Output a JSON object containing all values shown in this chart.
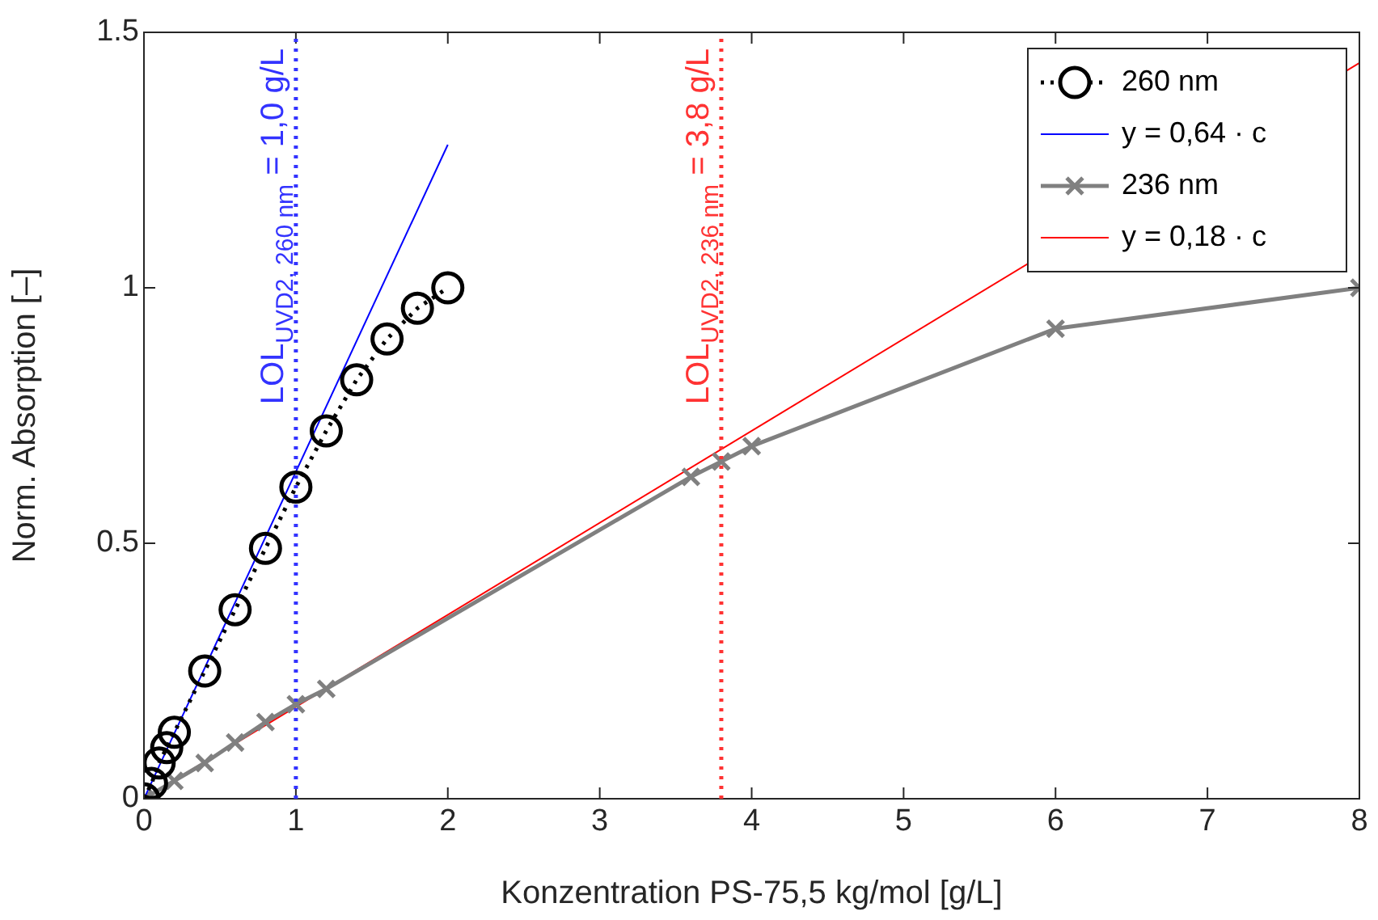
{
  "chart_data": {
    "type": "line",
    "xlabel": "Konzentration PS-75,5 kg/mol [g/L]",
    "ylabel": "Norm. Absorption [–]",
    "xlim": [
      0,
      8
    ],
    "ylim": [
      0,
      1.5
    ],
    "xticks": [
      0,
      1,
      2,
      3,
      4,
      5,
      6,
      7,
      8
    ],
    "yticks": [
      0,
      0.5,
      1,
      1.5
    ],
    "grid": false,
    "legend": "top right",
    "series": [
      {
        "name": "260 nm",
        "color": "#000000",
        "marker": "circle",
        "line_style": "dotted",
        "x": [
          0,
          0.05,
          0.1,
          0.15,
          0.2,
          0.4,
          0.6,
          0.8,
          1.0,
          1.2,
          1.4,
          1.6,
          1.8,
          2.0
        ],
        "values": [
          0,
          0.03,
          0.07,
          0.1,
          0.13,
          0.25,
          0.37,
          0.49,
          0.61,
          0.72,
          0.82,
          0.9,
          0.96,
          1.0
        ]
      },
      {
        "name": "y = 0,64 · c",
        "color": "#0000ff",
        "marker": "none",
        "line_style": "solid",
        "x": [
          0,
          2
        ],
        "values": [
          0,
          1.28
        ]
      },
      {
        "name": "236 nm",
        "color": "#808080",
        "marker": "cross",
        "line_style": "solid",
        "x": [
          0,
          0.2,
          0.4,
          0.6,
          0.8,
          1.0,
          1.2,
          3.6,
          3.8,
          4.0,
          6.0,
          8.0
        ],
        "values": [
          0,
          0.035,
          0.07,
          0.11,
          0.15,
          0.185,
          0.215,
          0.63,
          0.66,
          0.69,
          0.92,
          1.0
        ]
      },
      {
        "name": "y = 0,18 · c",
        "color": "#ff0000",
        "marker": "none",
        "line_style": "solid",
        "x": [
          0,
          8
        ],
        "values": [
          0,
          1.44
        ]
      }
    ],
    "ref_lines": [
      {
        "axis": "x",
        "value": 1.0,
        "label": "LOL$_{UVD2, 260 nm}$ = 1,0 g/L",
        "color": "#3333ff",
        "line_style": "dotted"
      },
      {
        "axis": "x",
        "value": 3.8,
        "label": "LOL$_{UVD2, 236 nm}$ = 3,8 g/L",
        "color": "#ff3333",
        "line_style": "dotted"
      }
    ]
  }
}
